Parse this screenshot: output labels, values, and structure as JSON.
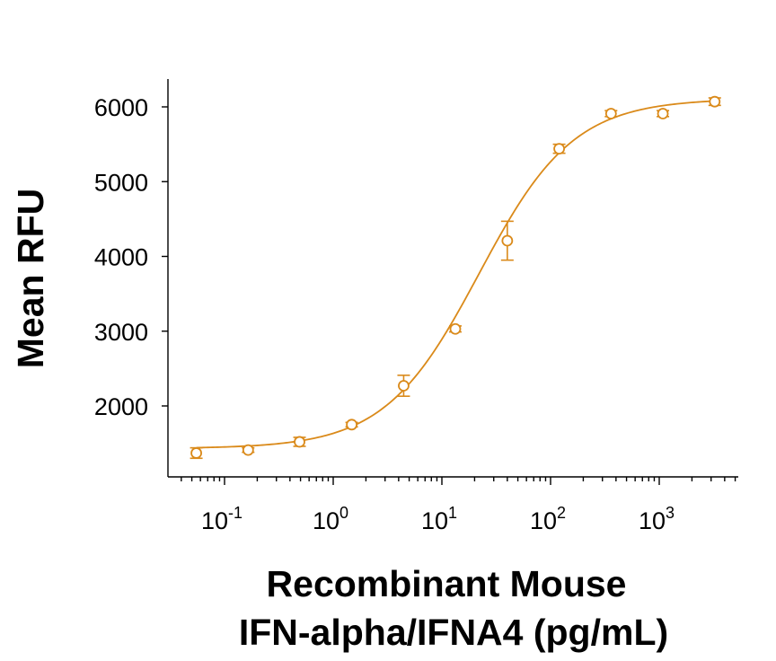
{
  "chart_data": {
    "type": "scatter",
    "title": "",
    "xlabel_lines": [
      "Recombinant Mouse",
      "IFN-alpha/IFNA4 (pg/mL)"
    ],
    "ylabel": "Mean RFU",
    "xscale": "log10",
    "xlim": [
      0.04,
      6000
    ],
    "ylim": [
      1230,
      6360
    ],
    "yticks": [
      2000,
      3000,
      4000,
      5000,
      6000
    ],
    "xticks": [
      {
        "value": 0.1,
        "base": "10",
        "exp": "-1"
      },
      {
        "value": 1,
        "base": "10",
        "exp": "0"
      },
      {
        "value": 10,
        "base": "10",
        "exp": "1"
      },
      {
        "value": 100,
        "base": "10",
        "exp": "2"
      },
      {
        "value": 1000,
        "base": "10",
        "exp": "3"
      }
    ],
    "color": "#DA8A1A",
    "series": [
      {
        "name": "Mean RFU",
        "x": [
          0.055,
          0.165,
          0.49,
          1.48,
          4.45,
          13.3,
          40,
          120,
          360,
          1080,
          3240
        ],
        "y": [
          1370,
          1410,
          1520,
          1750,
          2270,
          3030,
          4210,
          5440,
          5910,
          5910,
          6070
        ],
        "err": [
          70,
          30,
          60,
          30,
          140,
          40,
          260,
          60,
          40,
          40,
          50
        ]
      }
    ],
    "fit": {
      "model": "4PL",
      "bottom": 1430,
      "top": 6110,
      "ec50": 22,
      "hill": 1.0
    }
  }
}
